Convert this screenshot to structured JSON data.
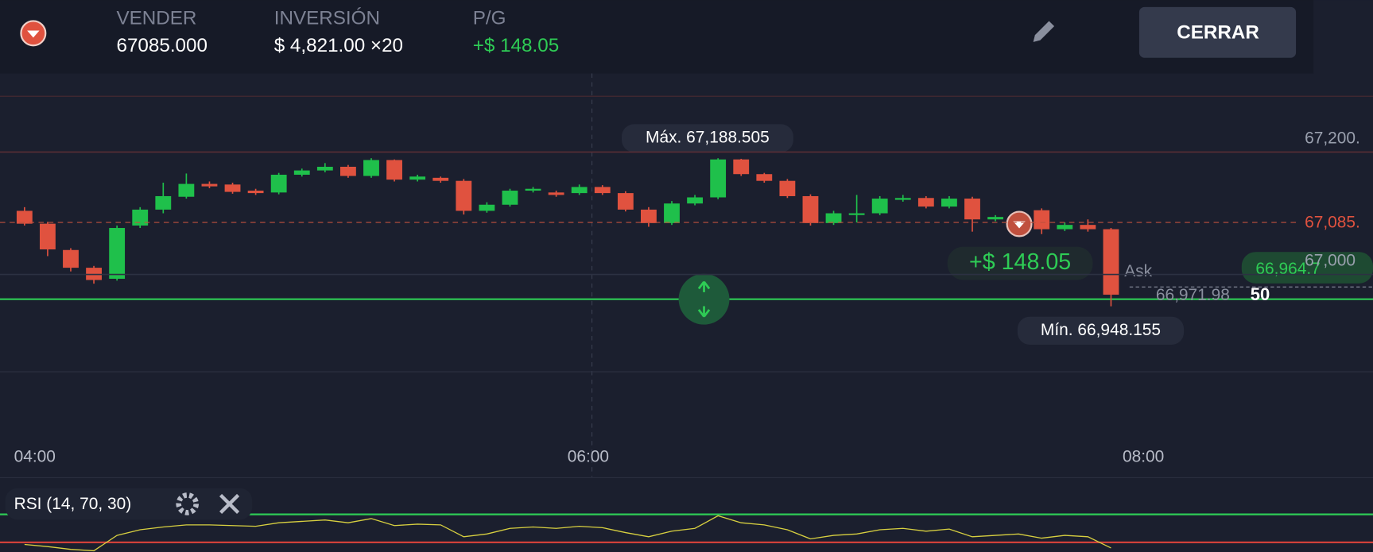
{
  "header": {
    "side_label": "VENDER",
    "side_value": "67085.000",
    "investment_label": "INVERSIÓN",
    "investment_value": "$ 4,821.00 ×20",
    "pl_label": "P/G",
    "pl_value": "+$ 148.05",
    "close_button": "CERRAR"
  },
  "chart": {
    "type": "candlestick",
    "up_color": "#1fc04b",
    "down_color": "#e0523f",
    "ylim": [
      66841,
      67327
    ],
    "yticks": [
      {
        "value": 67200,
        "label": "67,200."
      },
      {
        "value": 67000,
        "label": "67,000"
      }
    ],
    "current_price": {
      "value": 67085,
      "label": "67,085."
    },
    "open": [
      67104,
      67083,
      67040,
      67011,
      66993,
      67080,
      67106,
      67127,
      67148,
      67147,
      67137,
      67134,
      67163,
      67170,
      67176,
      67161,
      67187,
      67155,
      67158,
      67153,
      67104,
      67114,
      67137,
      67134,
      67133,
      67143,
      67133,
      67106,
      67084,
      67116,
      67126,
      67188,
      67164,
      67153,
      67128,
      67084,
      67099,
      67100,
      67122,
      67125,
      67111,
      67124,
      67090,
      67091,
      67105,
      67074,
      67081,
      67074
    ],
    "close": [
      67083,
      67041,
      67011,
      66991,
      67076,
      67106,
      67128,
      67148,
      67144,
      67135,
      67133,
      67163,
      67170,
      67176,
      67161,
      67187,
      67155,
      67160,
      67153,
      67104,
      67114,
      67137,
      67140,
      67130,
      67143,
      67133,
      67106,
      67084,
      67116,
      67126,
      67188,
      67164,
      67153,
      67128,
      67084,
      67100,
      67100,
      67124,
      67125,
      67111,
      67124,
      67090,
      67094,
      67094,
      67074,
      67081,
      67074,
      66967
    ],
    "high": [
      67110,
      67086,
      67043,
      67014,
      67080,
      67110,
      67150,
      67165,
      67152,
      67150,
      67140,
      67166,
      67173,
      67182,
      67179,
      67190,
      67188,
      67163,
      67160,
      67156,
      67118,
      67140,
      67143,
      67137,
      67147,
      67146,
      67136,
      67110,
      67120,
      67130,
      67190,
      67189,
      67166,
      67156,
      67131,
      67104,
      67130,
      67128,
      67130,
      67128,
      67128,
      67127,
      67097,
      67097,
      67108,
      67085,
      67090,
      67076
    ],
    "low": [
      67080,
      67030,
      67005,
      66985,
      66990,
      67076,
      67100,
      67124,
      67141,
      67132,
      67130,
      67131,
      67160,
      67167,
      67158,
      67158,
      67152,
      67152,
      67150,
      67098,
      67101,
      67111,
      67134,
      67127,
      67130,
      67130,
      67103,
      67078,
      67081,
      67113,
      67123,
      67161,
      67150,
      67125,
      67080,
      67081,
      67085,
      67097,
      67119,
      67108,
      67108,
      67070,
      67087,
      67088,
      67066,
      67071,
      67070,
      66948
    ],
    "max_label": "Máx. 67,188.505",
    "min_label": "Mín. 66,948.155",
    "pl_badge": "+$ 148.05",
    "bid_badge": "66,964.7",
    "ask_label": "Ask",
    "ask_price": "66,971.98",
    "ask_size": "50",
    "times": [
      "04:00",
      "06:00",
      "08:00"
    ]
  },
  "rsi": {
    "label": "RSI (14, 70, 30)",
    "overbought": 70,
    "oversold": 30,
    "values": [
      27,
      24,
      20,
      18,
      40,
      48,
      52,
      55,
      55,
      54,
      53,
      58,
      60,
      62,
      58,
      64,
      54,
      56,
      55,
      38,
      42,
      50,
      52,
      50,
      53,
      51,
      44,
      38,
      46,
      50,
      68,
      58,
      55,
      48,
      35,
      40,
      42,
      48,
      50,
      46,
      49,
      38,
      40,
      42,
      36,
      40,
      38,
      22
    ]
  }
}
